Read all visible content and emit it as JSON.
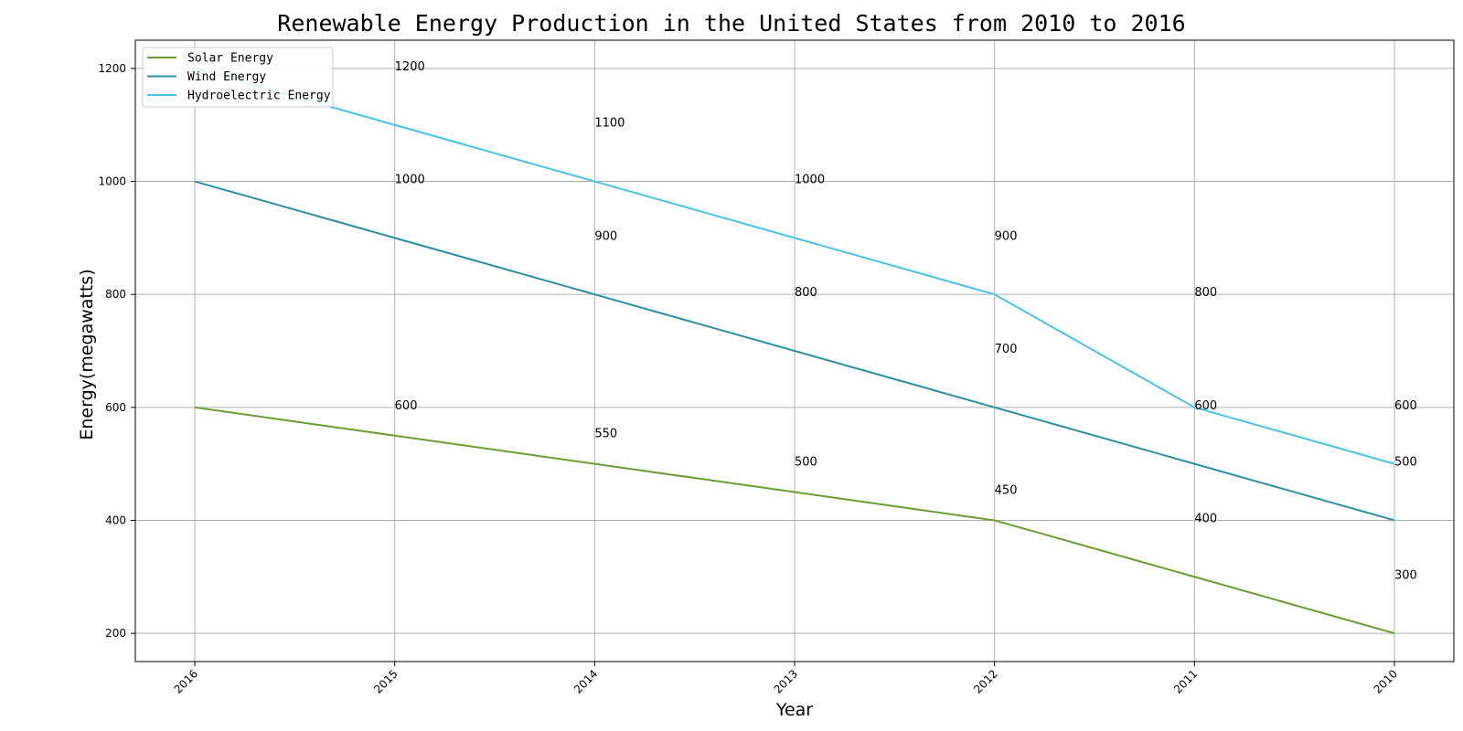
{
  "chart_data": {
    "type": "line",
    "title": "Renewable Energy Production in the United States from 2010 to 2016",
    "xlabel": "Year",
    "ylabel": "Energy(megawatts)",
    "categories": [
      "2016",
      "2015",
      "2014",
      "2013",
      "2012",
      "2011",
      "2010"
    ],
    "ylim": [
      150,
      1250
    ],
    "yticks": [
      200,
      400,
      600,
      800,
      1000,
      1200
    ],
    "grid": true,
    "legend_position": "upper-left",
    "series": [
      {
        "name": "Solar Energy",
        "color": "#6a9e2f",
        "values": [
          600,
          550,
          500,
          450,
          400,
          300,
          200
        ]
      },
      {
        "name": "Wind Energy",
        "color": "#2a8fa6",
        "values": [
          1000,
          900,
          800,
          700,
          600,
          500,
          400
        ]
      },
      {
        "name": "Hydroelectric Energy",
        "color": "#45c3ea",
        "values": [
          1200,
          1100,
          1000,
          900,
          800,
          600,
          500
        ]
      }
    ],
    "annotations": [
      {
        "text": "1200",
        "x_index": 1,
        "y": 1200
      },
      {
        "text": "1000",
        "x_index": 1,
        "y": 1000
      },
      {
        "text": "600",
        "x_index": 1,
        "y": 600
      },
      {
        "text": "1100",
        "x_index": 2,
        "y": 1100
      },
      {
        "text": "900",
        "x_index": 2,
        "y": 900
      },
      {
        "text": "550",
        "x_index": 2,
        "y": 550
      },
      {
        "text": "1000",
        "x_index": 3,
        "y": 1000
      },
      {
        "text": "800",
        "x_index": 3,
        "y": 800
      },
      {
        "text": "500",
        "x_index": 3,
        "y": 500
      },
      {
        "text": "900",
        "x_index": 4,
        "y": 900
      },
      {
        "text": "700",
        "x_index": 4,
        "y": 700
      },
      {
        "text": "450",
        "x_index": 4,
        "y": 450
      },
      {
        "text": "800",
        "x_index": 5,
        "y": 800
      },
      {
        "text": "600",
        "x_index": 5,
        "y": 600
      },
      {
        "text": "400",
        "x_index": 5,
        "y": 400
      },
      {
        "text": "600",
        "x_index": 6,
        "y": 600
      },
      {
        "text": "500",
        "x_index": 6,
        "y": 500
      },
      {
        "text": "300",
        "x_index": 6,
        "y": 300
      }
    ]
  }
}
